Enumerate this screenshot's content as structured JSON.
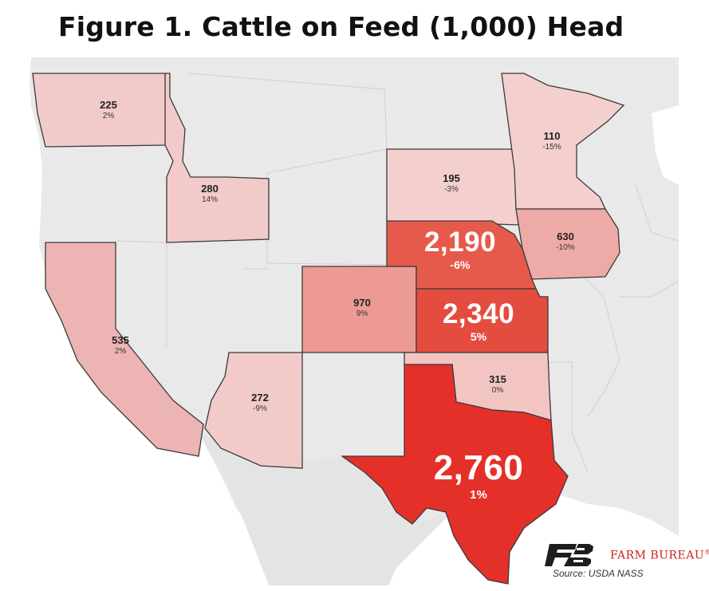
{
  "title": "Figure 1. Cattle on Feed (1,000) Head",
  "source": "Source:  USDA NASS",
  "brand": {
    "name": "FARM BUREAU",
    "mark": "®",
    "color": "#c8231c"
  },
  "colors": {
    "background": "#e9e9e9",
    "land": "#e4e4e4",
    "water": "#ffffff",
    "border": "#3a3a3a"
  },
  "states": [
    {
      "id": "wa",
      "value": "225",
      "change": "2%",
      "fill": "#f2caca"
    },
    {
      "id": "id",
      "value": "280",
      "change": "14%",
      "fill": "#f2caca"
    },
    {
      "id": "ca",
      "value": "535",
      "change": "2%",
      "fill": "#edb4b4"
    },
    {
      "id": "az",
      "value": "272",
      "change": "-9%",
      "fill": "#f2caca"
    },
    {
      "id": "co",
      "value": "970",
      "change": "9%",
      "fill": "#ee9a94"
    },
    {
      "id": "sd",
      "value": "195",
      "change": "-3%",
      "fill": "#f3cfcd"
    },
    {
      "id": "mn",
      "value": "110",
      "change": "-15%",
      "fill": "#f3cfcd"
    },
    {
      "id": "ia",
      "value": "630",
      "change": "-10%",
      "fill": "#eeaaa6"
    },
    {
      "id": "ne",
      "value": "2,190",
      "change": "-6%",
      "fill": "#e65a4c"
    },
    {
      "id": "ks",
      "value": "2,340",
      "change": "5%",
      "fill": "#e44c3f"
    },
    {
      "id": "ok",
      "value": "315",
      "change": "0%",
      "fill": "#f2c5c3"
    },
    {
      "id": "tx",
      "value": "2,760",
      "change": "1%",
      "fill": "#e5302a"
    }
  ]
}
